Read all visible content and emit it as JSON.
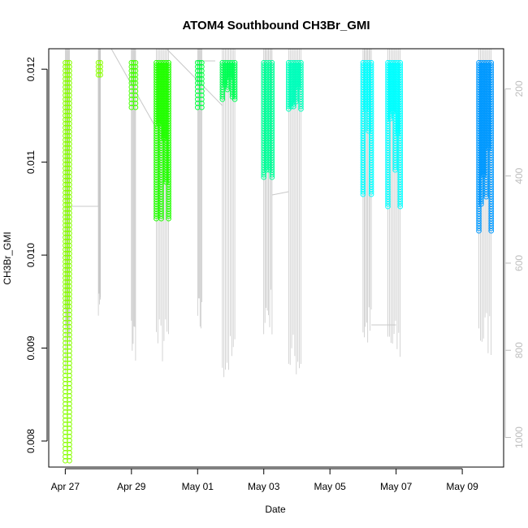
{
  "chart_data": {
    "type": "scatter",
    "title": "ATOM4 Southbound CH3Br_GMI",
    "xlabel": "Date",
    "ylabel": "CH3Br_GMI",
    "x_ticks": [
      "Apr 27",
      "Apr 29",
      "May 01",
      "May 03",
      "May 05",
      "May 07",
      "May 09"
    ],
    "y_ticks": [
      "0.008",
      "0.009",
      "0.010",
      "0.011",
      "0.012"
    ],
    "y2_ticks": [
      "200",
      "400",
      "600",
      "800",
      "1000"
    ],
    "xlim": [
      "Apr 26 12:00",
      "May 10 06:00"
    ],
    "ylim": [
      0.00772,
      0.01222
    ],
    "y2lim": [
      108,
      1068
    ],
    "y2_reversed": true,
    "grid": false,
    "colors": {
      "series_gradient": [
        "#88ff00",
        "#00ff40",
        "#00ffff",
        "#0099ff"
      ],
      "pressure_line": "#c8c8c8"
    },
    "segments": [
      {
        "name": "",
        "start": "Apr 27 00:00",
        "end": "Apr 27 03:00",
        "y_min": 0.00775,
        "y_max": 0.01207,
        "color": "#88ff00"
      },
      {
        "name": "",
        "start": "Apr 28 00:00",
        "end": "Apr 28 01:30",
        "y_min": 0.01193,
        "y_max": 0.01207,
        "color": "#88ff00"
      },
      {
        "name": "",
        "start": "Apr 29 00:00",
        "end": "Apr 29 03:00",
        "y_min": 0.01155,
        "y_max": 0.01207,
        "color": "#44ff00"
      },
      {
        "name": "",
        "start": "Apr 29 18:00",
        "end": "Apr 30 03:00",
        "y_min": 0.01038,
        "y_max": 0.01207,
        "color": "#22ff00"
      },
      {
        "name": "",
        "start": "May 01 00:00",
        "end": "May 01 03:00",
        "y_min": 0.01157,
        "y_max": 0.01207,
        "color": "#00ff40"
      },
      {
        "name": "",
        "start": "May 01 18:00",
        "end": "May 02 03:00",
        "y_min": 0.01167,
        "y_max": 0.01207,
        "color": "#00ff55"
      },
      {
        "name": "",
        "start": "May 03 00:00",
        "end": "May 03 06:00",
        "y_min": 0.01082,
        "y_max": 0.01207,
        "color": "#00ff99"
      },
      {
        "name": "",
        "start": "May 03 18:00",
        "end": "May 04 03:00",
        "y_min": 0.01155,
        "y_max": 0.01207,
        "color": "#00ffbb"
      },
      {
        "name": "",
        "start": "May 06 00:00",
        "end": "May 06 06:00",
        "y_min": 0.01063,
        "y_max": 0.01207,
        "color": "#00ffff"
      },
      {
        "name": "",
        "start": "May 06 18:00",
        "end": "May 07 03:00",
        "y_min": 0.01052,
        "y_max": 0.01207,
        "color": "#00ffff"
      },
      {
        "name": "",
        "start": "May 09 12:00",
        "end": "May 09 21:00",
        "y_min": 0.01024,
        "y_max": 0.01207,
        "color": "#0099ff"
      }
    ]
  }
}
